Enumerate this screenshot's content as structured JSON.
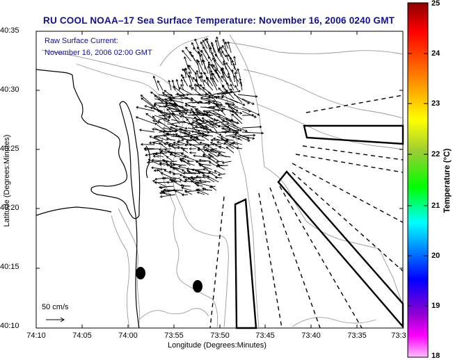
{
  "title": "RU COOL  NOAA–17  Sea Surface Temperature:  November 16, 2006 0240 GMT",
  "current_label": "Raw Surface Current:",
  "current_time": "November 16, 2006 02:00 GMT",
  "scale_label": "50 cm/s",
  "x_axis_title": "Longitude (Degrees:Minutes)",
  "y_axis_title": "Latitude (Degrees:Minutes)",
  "x_ticks": [
    "74:10",
    "74:05",
    "74:00",
    "73:55",
    "73:50",
    "73:45",
    "73:40",
    "73:35",
    "73:3"
  ],
  "y_ticks": [
    "40:35",
    "40:30",
    "40:25",
    "40:20",
    "40:15",
    "40:10"
  ],
  "colorbar": {
    "title": "Temperature (°C)",
    "ticks": [
      "25",
      "24",
      "23",
      "22",
      "21",
      "20",
      "19",
      "18"
    ],
    "range": [
      18,
      25
    ],
    "colors": [
      "#8b0000",
      "#ff0000",
      "#ff8c00",
      "#ffff00",
      "#9acd32",
      "#00ff00",
      "#00ffff",
      "#0000ff",
      "#9400d3",
      "#ff00ff",
      "#ffc0ff"
    ]
  },
  "map": {
    "lon_range": [
      "74:10",
      "73:3"
    ],
    "lat_range": [
      "40:10",
      "40:35"
    ],
    "grid": false,
    "land_color": "#ffffff",
    "coast_color": "#000000",
    "bathymetry_color": "#9a9a9a"
  }
}
